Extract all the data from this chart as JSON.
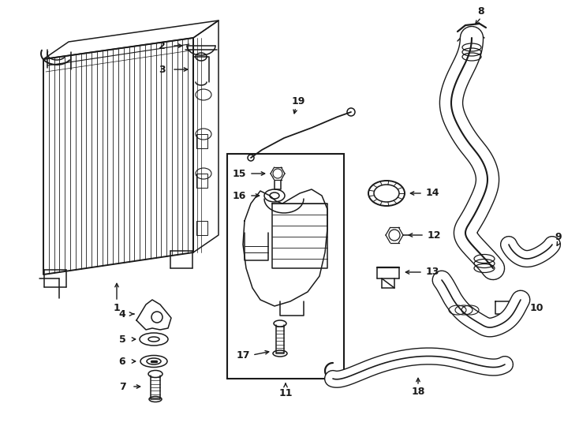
{
  "bg_color": "#ffffff",
  "line_color": "#1a1a1a",
  "lw": 1.1,
  "fig_width": 7.34,
  "fig_height": 5.4,
  "dpi": 100
}
